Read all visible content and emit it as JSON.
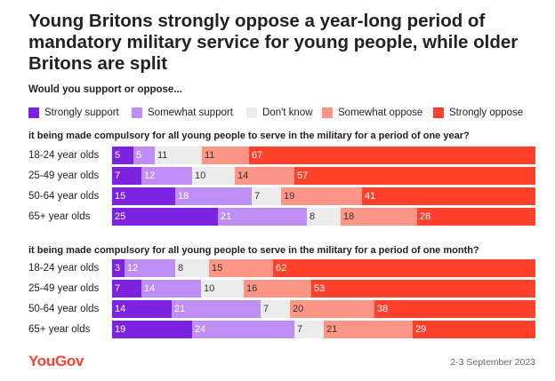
{
  "title": "Young Britons strongly oppose a year-long period of mandatory military service for young people, while older Britons are split",
  "subtitle": "Would you support or oppose...",
  "legend": [
    {
      "label": "Strongly support",
      "color": "#7d22e0"
    },
    {
      "label": "Somewhat support",
      "color": "#bf8ef5"
    },
    {
      "label": "Don't know",
      "color": "#ececec"
    },
    {
      "label": "Somewhat oppose",
      "color": "#fd9686"
    },
    {
      "label": "Strongly oppose",
      "color": "#ff412c"
    }
  ],
  "chart_data": [
    {
      "type": "bar",
      "orientation": "horizontal-stacked-100",
      "title": "it being made compulsory for all young people to serve in the military for a period of one year?",
      "categories": [
        "18-24 year olds",
        "25-49 year olds",
        "50-64 year olds",
        "65+ year olds"
      ],
      "series": [
        {
          "name": "Strongly support",
          "values": [
            5,
            7,
            15,
            25
          ]
        },
        {
          "name": "Somewhat support",
          "values": [
            5,
            12,
            18,
            21
          ]
        },
        {
          "name": "Don't know",
          "values": [
            11,
            10,
            7,
            8
          ]
        },
        {
          "name": "Somewhat oppose",
          "values": [
            11,
            14,
            19,
            18
          ]
        },
        {
          "name": "Strongly oppose",
          "values": [
            67,
            57,
            41,
            28
          ]
        }
      ]
    },
    {
      "type": "bar",
      "orientation": "horizontal-stacked-100",
      "title": "it being made compulsory for all young people to serve in the military for a period of one month?",
      "categories": [
        "18-24 year olds",
        "25-49 year olds",
        "50-64 year olds",
        "65+ year olds"
      ],
      "series": [
        {
          "name": "Strongly support",
          "values": [
            3,
            7,
            14,
            19
          ]
        },
        {
          "name": "Somewhat support",
          "values": [
            12,
            14,
            21,
            24
          ]
        },
        {
          "name": "Don't know",
          "values": [
            8,
            10,
            7,
            7
          ]
        },
        {
          "name": "Somewhat oppose",
          "values": [
            15,
            16,
            20,
            21
          ]
        },
        {
          "name": "Strongly oppose",
          "values": [
            62,
            53,
            38,
            29
          ]
        }
      ]
    }
  ],
  "footer": {
    "logo": "YouGov",
    "date": "2-3 September 2023"
  }
}
